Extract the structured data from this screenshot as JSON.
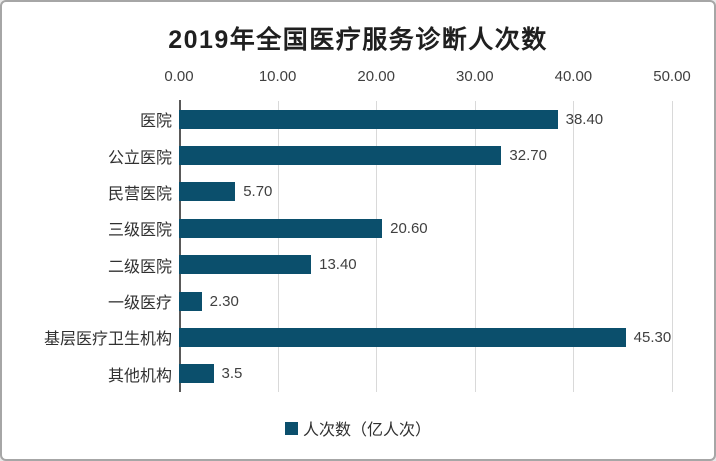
{
  "chart_data": {
    "type": "bar",
    "orientation": "horizontal",
    "title": "2019年全国医疗服务诊断人次数",
    "categories": [
      "医院",
      "公立医院",
      "民营医院",
      "三级医院",
      "二级医院",
      "一级医疗",
      "基层医疗卫生机构",
      "其他机构"
    ],
    "values": [
      38.4,
      32.7,
      5.7,
      20.6,
      13.4,
      2.3,
      45.3,
      3.5
    ],
    "value_labels": [
      "38.40",
      "32.70",
      "5.70",
      "20.60",
      "13.40",
      "2.30",
      "45.30",
      "3.5"
    ],
    "series_name": "人次数（亿人次）",
    "legend_position": "bottom",
    "grid": "vertical-only",
    "x_axis": {
      "position": "top",
      "min": 0,
      "max": 50,
      "ticks": [
        0,
        10,
        20,
        30,
        40,
        50
      ],
      "tick_labels": [
        "0.00",
        "10.00",
        "20.00",
        "30.00",
        "40.00",
        "50.00"
      ]
    },
    "colors": {
      "bar": "#0b4f6c",
      "gridline": "#d9d9d9",
      "axis_line": "#595959",
      "title_text": "#1f1f1f",
      "label_text": "#303030",
      "tick_text": "#404040",
      "frame_border": "#a6a6a6",
      "background": "#ffffff"
    }
  }
}
